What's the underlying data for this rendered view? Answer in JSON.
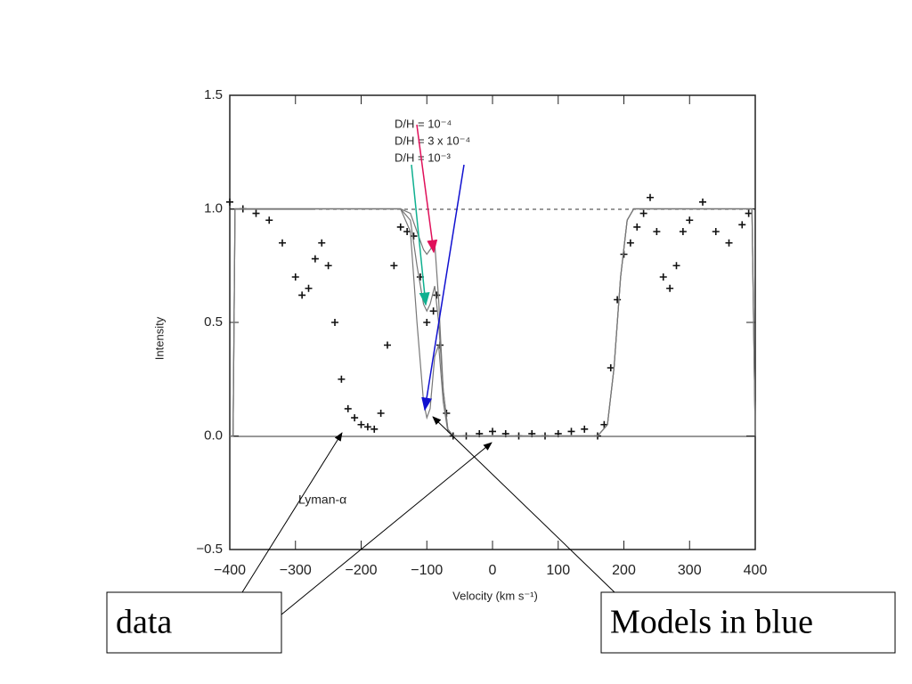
{
  "chart_data": {
    "type": "scatter",
    "xlabel": "Velocity (km s⁻¹)",
    "ylabel": "Intensity",
    "xlim": [
      -400,
      400
    ],
    "ylim": [
      -0.5,
      1.5
    ],
    "xticks": [
      {
        "value": -400,
        "label": "−400"
      },
      {
        "value": -300,
        "label": "−300"
      },
      {
        "value": -200,
        "label": "−200"
      },
      {
        "value": -100,
        "label": "−100"
      },
      0,
      100,
      200,
      300,
      400
    ],
    "yticks": [
      {
        "value": -0.5,
        "label": "−0.5"
      },
      {
        "value": 0,
        "label": "0.0"
      },
      {
        "value": 0.5,
        "label": "0.5"
      },
      {
        "value": 1,
        "label": "1.0"
      },
      {
        "value": 1.5,
        "label": "1.5"
      }
    ],
    "annotations": [
      "Lyman-α",
      "Models in blue"
    ],
    "series": [
      {
        "name": "data",
        "type": "scatter",
        "color": "#111111",
        "x": [
          -400,
          -380,
          -360,
          -340,
          -320,
          -300,
          -290,
          -280,
          -270,
          -260,
          -250,
          -240,
          -230,
          -220,
          -210,
          -200,
          -190,
          -180,
          -170,
          -160,
          -150,
          -140,
          -130,
          -120,
          -110,
          -100,
          -90,
          -85,
          -80,
          -70,
          -60,
          -40,
          -20,
          0,
          20,
          40,
          60,
          80,
          100,
          120,
          140,
          160,
          170,
          180,
          190,
          200,
          210,
          220,
          230,
          240,
          250,
          260,
          270,
          280,
          290,
          300,
          320,
          340,
          360,
          380,
          390
        ],
        "values": [
          1.03,
          1.0,
          0.98,
          0.95,
          0.85,
          0.7,
          0.62,
          0.65,
          0.78,
          0.85,
          0.75,
          0.5,
          0.25,
          0.12,
          0.08,
          0.05,
          0.04,
          0.03,
          0.1,
          0.4,
          0.75,
          0.92,
          0.9,
          0.88,
          0.7,
          0.5,
          0.55,
          0.62,
          0.4,
          0.1,
          0.0,
          0.0,
          0.01,
          0.02,
          0.01,
          0.0,
          0.01,
          0.0,
          0.01,
          0.02,
          0.03,
          0.0,
          0.05,
          0.3,
          0.6,
          0.8,
          0.85,
          0.92,
          0.98,
          1.05,
          0.9,
          0.7,
          0.65,
          0.75,
          0.9,
          0.95,
          1.03,
          0.9,
          0.85,
          0.93,
          0.98
        ]
      },
      {
        "name": "D/H = 10⁻⁴",
        "type": "line",
        "color": "#777777",
        "x": [
          -400,
          -395,
          -392,
          -140,
          -125,
          -115,
          -105,
          -100,
          -95,
          -88,
          -82,
          -75,
          -68,
          -60,
          160,
          175,
          185,
          195,
          205,
          215,
          390,
          395,
          400
        ],
        "values": [
          0,
          0,
          1,
          1,
          0.98,
          0.9,
          0.82,
          0.8,
          0.82,
          0.85,
          0.6,
          0.2,
          0.03,
          0,
          0,
          0.05,
          0.3,
          0.7,
          0.95,
          1,
          1,
          1,
          0
        ]
      },
      {
        "name": "D/H = 3 x 10⁻⁴",
        "type": "line",
        "color": "#777777",
        "x": [
          -400,
          -395,
          -392,
          -140,
          -125,
          -115,
          -105,
          -100,
          -95,
          -88,
          -82,
          -75,
          -68,
          -60,
          160,
          175,
          185,
          195,
          205,
          215,
          390,
          395,
          400
        ],
        "values": [
          0,
          0,
          1,
          1,
          0.95,
          0.75,
          0.58,
          0.55,
          0.58,
          0.66,
          0.5,
          0.2,
          0.03,
          0,
          0,
          0.05,
          0.3,
          0.7,
          0.95,
          1,
          1,
          1,
          0
        ]
      },
      {
        "name": "D/H = 10⁻³",
        "type": "line",
        "color": "#777777",
        "x": [
          -400,
          -395,
          -392,
          -140,
          -125,
          -115,
          -105,
          -100,
          -95,
          -88,
          -82,
          -75,
          -68,
          -60,
          160,
          175,
          185,
          195,
          205,
          215,
          390,
          395,
          400
        ],
        "values": [
          0,
          0,
          1,
          1,
          0.9,
          0.5,
          0.15,
          0.08,
          0.12,
          0.35,
          0.4,
          0.15,
          0.02,
          0,
          0,
          0.05,
          0.3,
          0.7,
          0.95,
          1,
          1,
          1,
          0
        ]
      }
    ]
  }
}
